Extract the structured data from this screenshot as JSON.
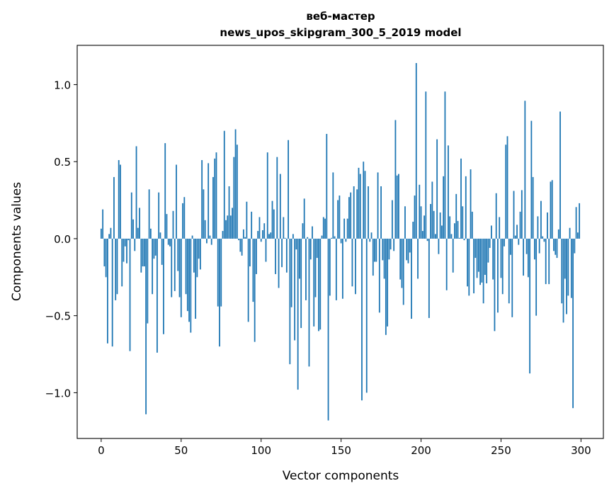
{
  "chart_data": {
    "type": "bar",
    "title": "веб-мастер",
    "subtitle": "news_upos_skipgram_300_5_2019 model",
    "xlabel": "Vector components",
    "ylabel": "Components values",
    "xlim": [
      -15,
      314
    ],
    "ylim": [
      -1.297,
      1.255
    ],
    "xticks": [
      0,
      50,
      100,
      150,
      200,
      250,
      300
    ],
    "xtick_labels": [
      "0",
      "50",
      "100",
      "150",
      "200",
      "250",
      "300"
    ],
    "yticks": [
      -1.0,
      -0.5,
      0.0,
      0.5,
      1.0
    ],
    "ytick_labels": [
      "−1.0",
      "−0.5",
      "0.0",
      "0.5",
      "1.0"
    ],
    "grid": false,
    "color": "#1f77b4",
    "values": [
      0.065,
      0.19,
      -0.18,
      -0.25,
      -0.68,
      0.03,
      0.07,
      -0.7,
      0.4,
      -0.4,
      -0.36,
      0.51,
      0.48,
      -0.31,
      -0.15,
      -0.05,
      -0.16,
      -0.01,
      -0.73,
      0.3,
      0.125,
      -0.08,
      0.6,
      0.07,
      0.2,
      -0.22,
      -0.18,
      -0.18,
      -1.14,
      -0.55,
      0.32,
      0.065,
      -0.36,
      -0.13,
      -0.11,
      -0.74,
      0.3,
      0.04,
      -0.17,
      -0.62,
      0.62,
      0.16,
      -0.04,
      -0.05,
      -0.38,
      0.18,
      -0.34,
      0.48,
      -0.21,
      -0.38,
      -0.51,
      0.23,
      0.27,
      -0.36,
      -0.47,
      -0.54,
      -0.61,
      0.02,
      -0.22,
      -0.52,
      -0.25,
      -0.13,
      -0.2,
      0.51,
      0.32,
      0.12,
      -0.03,
      0.49,
      0.02,
      -0.04,
      0.4,
      0.52,
      0.56,
      -0.44,
      -0.7,
      -0.44,
      0.05,
      0.7,
      0.12,
      0.15,
      0.34,
      0.15,
      0.2,
      0.53,
      0.71,
      0.61,
      -0.01,
      -0.085,
      -0.11,
      0.06,
      0.01,
      0.24,
      -0.54,
      -0.18,
      0.175,
      -0.41,
      -0.67,
      -0.23,
      0.05,
      0.14,
      -0.02,
      0.055,
      0.1,
      -0.15,
      0.56,
      0.03,
      0.04,
      0.245,
      0.19,
      -0.23,
      0.53,
      -0.32,
      0.42,
      -0.185,
      0.14,
      0.005,
      -0.22,
      0.64,
      -0.815,
      -0.445,
      0.03,
      -0.66,
      -0.07,
      -0.98,
      -0.26,
      -0.58,
      0.1,
      0.26,
      -0.4,
      0.01,
      -0.83,
      -0.135,
      0.08,
      -0.57,
      -0.38,
      -0.125,
      -0.6,
      -0.59,
      0.02,
      0.14,
      0.13,
      0.68,
      -1.18,
      -0.37,
      0.005,
      0.43,
      0.015,
      -0.4,
      0.25,
      0.28,
      -0.03,
      -0.39,
      0.13,
      -0.02,
      0.13,
      0.27,
      0.3,
      -0.31,
      0.34,
      -0.36,
      0.32,
      0.46,
      0.42,
      -1.05,
      0.5,
      0.44,
      -1.0,
      0.34,
      -0.02,
      0.04,
      -0.24,
      -0.15,
      -0.15,
      0.43,
      -0.48,
      0.34,
      -0.14,
      -0.26,
      -0.625,
      -0.57,
      -0.135,
      -0.07,
      0.25,
      -0.08,
      0.77,
      0.41,
      0.42,
      -0.265,
      -0.32,
      -0.43,
      0.21,
      -0.14,
      -0.16,
      -0.09,
      -0.52,
      0.11,
      0.28,
      1.14,
      -0.26,
      0.35,
      0.21,
      0.05,
      0.15,
      0.955,
      -0.015,
      -0.515,
      0.225,
      0.37,
      0.18,
      0.03,
      0.645,
      -0.1,
      0.17,
      0.085,
      0.405,
      0.955,
      -0.335,
      0.605,
      0.145,
      0.03,
      -0.22,
      0.1,
      0.29,
      0.115,
      0.005,
      0.52,
      0.21,
      -0.01,
      0.405,
      -0.31,
      -0.37,
      0.45,
      0.175,
      -0.355,
      -0.125,
      -0.255,
      -0.215,
      -0.3,
      -0.285,
      -0.42,
      -0.235,
      -0.29,
      -0.155,
      -0.06,
      0.085,
      -0.265,
      -0.6,
      0.295,
      -0.48,
      0.14,
      -0.255,
      -0.36,
      -0.05,
      0.61,
      0.665,
      -0.42,
      -0.105,
      -0.51,
      0.31,
      0.02,
      0.09,
      -0.04,
      0.175,
      0.315,
      -0.24,
      0.895,
      -0.1,
      -0.25,
      -0.875,
      0.765,
      0.4,
      -0.135,
      -0.5,
      0.145,
      -0.095,
      0.245,
      0.015,
      -0.02,
      -0.295,
      0.17,
      -0.295,
      0.37,
      0.38,
      -0.08,
      -0.105,
      -0.125,
      0.06,
      0.825,
      -0.42,
      -0.545,
      -0.26,
      -0.49,
      -0.37,
      0.07,
      -0.385,
      -1.1,
      -0.095,
      0.205,
      0.04,
      0.23
    ]
  }
}
